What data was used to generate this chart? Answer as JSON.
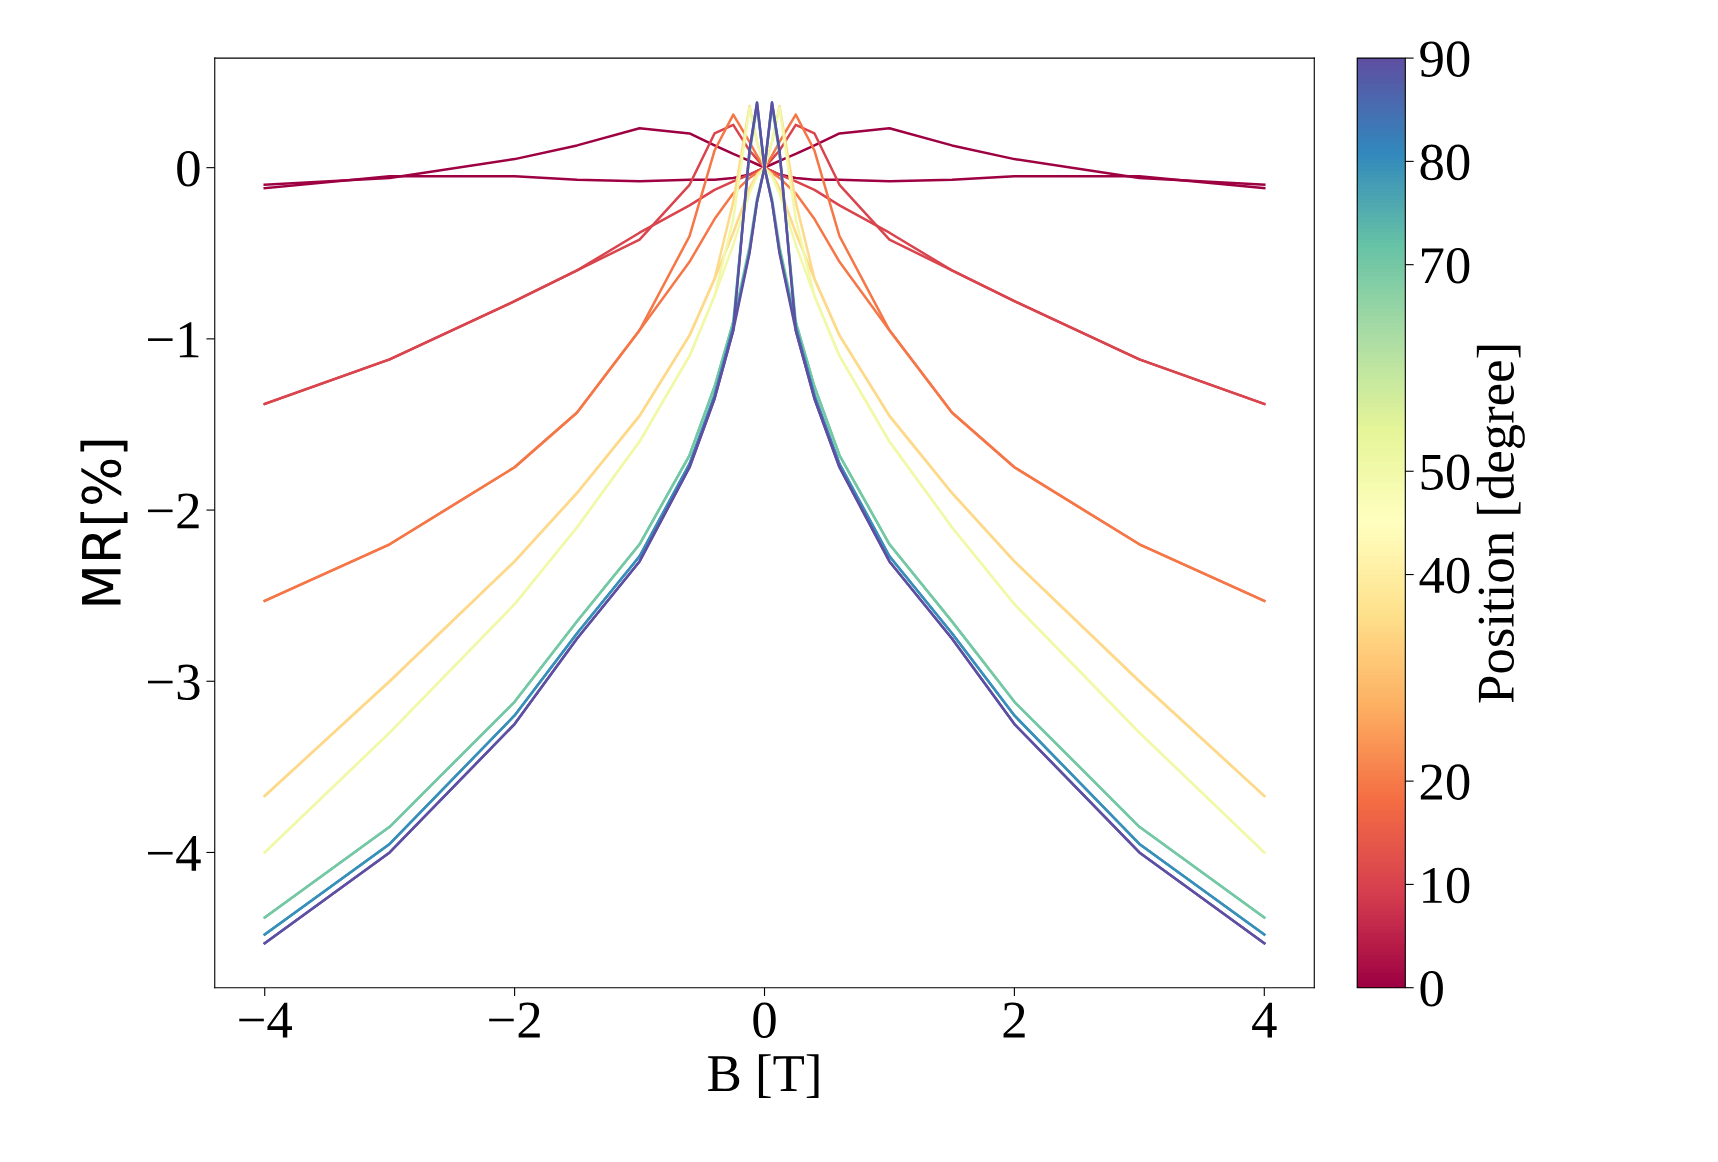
{
  "chart_data": {
    "type": "line",
    "xlabel": "B [T]",
    "ylabel": "MR[%]",
    "clabel": "Position [degree]",
    "x": [
      -4,
      -3,
      -2,
      -1.5,
      -1,
      -0.6,
      -0.4,
      -0.25,
      -0.12,
      -0.06,
      0,
      0.06,
      0.12,
      0.25,
      0.4,
      0.6,
      1,
      1.5,
      2,
      3,
      4
    ],
    "series": [
      {
        "color": "#9e0142",
        "values": [
          -0.1,
          -0.06,
          0.05,
          0.13,
          0.23,
          0.2,
          0.13,
          0.08,
          0.04,
          0.02,
          0,
          -0.02,
          -0.04,
          -0.06,
          -0.07,
          -0.07,
          -0.08,
          -0.07,
          -0.05,
          -0.05,
          -0.12
        ]
      },
      {
        "color": "#9e0142",
        "values": [
          -0.12,
          -0.05,
          -0.05,
          -0.07,
          -0.08,
          -0.07,
          -0.07,
          -0.06,
          -0.04,
          -0.02,
          0,
          0.02,
          0.04,
          0.08,
          0.13,
          0.2,
          0.23,
          0.13,
          0.05,
          -0.06,
          -0.1
        ]
      },
      {
        "color": "#d9444d",
        "values": [
          -1.38,
          -1.12,
          -0.78,
          -0.6,
          -0.42,
          -0.1,
          0.2,
          0.25,
          0.1,
          0.05,
          0,
          -0.02,
          -0.04,
          -0.08,
          -0.13,
          -0.22,
          -0.38,
          -0.6,
          -0.78,
          -1.12,
          -1.38
        ]
      },
      {
        "color": "#d9444d",
        "values": [
          -1.38,
          -1.12,
          -0.78,
          -0.6,
          -0.38,
          -0.22,
          -0.13,
          -0.08,
          -0.04,
          -0.02,
          0,
          0.05,
          0.1,
          0.25,
          0.2,
          -0.1,
          -0.42,
          -0.6,
          -0.78,
          -1.12,
          -1.38
        ]
      },
      {
        "color": "#f57748",
        "values": [
          -2.53,
          -2.2,
          -1.75,
          -1.43,
          -0.95,
          -0.4,
          0.1,
          0.31,
          0.15,
          0.07,
          0,
          -0.03,
          -0.06,
          -0.15,
          -0.3,
          -0.55,
          -0.95,
          -1.43,
          -1.75,
          -2.2,
          -2.53
        ]
      },
      {
        "color": "#f57748",
        "values": [
          -2.53,
          -2.2,
          -1.75,
          -1.43,
          -0.95,
          -0.55,
          -0.3,
          -0.15,
          -0.06,
          -0.03,
          0,
          0.07,
          0.15,
          0.31,
          0.1,
          -0.4,
          -0.95,
          -1.43,
          -1.75,
          -2.2,
          -2.53
        ]
      },
      {
        "color": "#fed98a",
        "values": [
          -3.67,
          -3.0,
          -2.3,
          -1.9,
          -1.45,
          -0.98,
          -0.65,
          -0.2,
          0.36,
          0.15,
          0,
          -0.04,
          -0.12,
          -0.38,
          -0.65,
          -0.98,
          -1.45,
          -1.9,
          -2.3,
          -3.0,
          -3.67
        ]
      },
      {
        "color": "#fed98a",
        "values": [
          -3.67,
          -3.0,
          -2.3,
          -1.9,
          -1.45,
          -0.98,
          -0.65,
          -0.38,
          -0.12,
          -0.04,
          0,
          0.15,
          0.36,
          -0.2,
          -0.65,
          -0.98,
          -1.45,
          -1.9,
          -2.3,
          -3.0,
          -3.67
        ]
      },
      {
        "color": "#f1f9a9",
        "values": [
          -4.0,
          -3.3,
          -2.55,
          -2.1,
          -1.6,
          -1.1,
          -0.75,
          -0.3,
          0.35,
          0.15,
          0,
          -0.05,
          -0.15,
          -0.45,
          -0.75,
          -1.1,
          -1.6,
          -2.1,
          -2.55,
          -3.3,
          -4.0
        ]
      },
      {
        "color": "#f1f9a9",
        "values": [
          -4.0,
          -3.3,
          -2.55,
          -2.1,
          -1.6,
          -1.1,
          -0.75,
          -0.45,
          -0.15,
          -0.05,
          0,
          0.15,
          0.35,
          -0.3,
          -0.75,
          -1.1,
          -1.6,
          -2.1,
          -2.55,
          -3.3,
          -4.0
        ]
      },
      {
        "color": "#75c8a5",
        "values": [
          -4.38,
          -3.85,
          -3.12,
          -2.65,
          -2.2,
          -1.68,
          -1.28,
          -0.9,
          0.08,
          0.36,
          0,
          -0.18,
          -0.46,
          -0.9,
          -1.28,
          -1.68,
          -2.2,
          -2.65,
          -3.12,
          -3.85,
          -4.38
        ]
      },
      {
        "color": "#75c8a5",
        "values": [
          -4.38,
          -3.85,
          -3.12,
          -2.65,
          -2.2,
          -1.68,
          -1.28,
          -0.9,
          -0.46,
          -0.18,
          0,
          0.36,
          0.08,
          -0.9,
          -1.28,
          -1.68,
          -2.2,
          -2.65,
          -3.12,
          -3.85,
          -4.38
        ]
      },
      {
        "color": "#3890ba",
        "values": [
          -4.48,
          -3.95,
          -3.2,
          -2.72,
          -2.27,
          -1.73,
          -1.33,
          -0.93,
          0.1,
          0.38,
          0,
          -0.2,
          -0.49,
          -0.93,
          -1.33,
          -1.73,
          -2.27,
          -2.72,
          -3.2,
          -3.95,
          -4.48
        ]
      },
      {
        "color": "#3890ba",
        "values": [
          -4.48,
          -3.95,
          -3.2,
          -2.72,
          -2.27,
          -1.73,
          -1.33,
          -0.93,
          -0.49,
          -0.2,
          0,
          0.38,
          0.1,
          -0.93,
          -1.33,
          -1.73,
          -2.27,
          -2.72,
          -3.2,
          -3.95,
          -4.48
        ]
      },
      {
        "color": "#5e4fa2",
        "values": [
          -4.53,
          -4.0,
          -3.25,
          -2.75,
          -2.3,
          -1.75,
          -1.35,
          -0.95,
          0.1,
          0.38,
          0,
          -0.2,
          -0.5,
          -0.95,
          -1.35,
          -1.75,
          -2.3,
          -2.75,
          -3.25,
          -4.0,
          -4.53
        ]
      },
      {
        "color": "#5e4fa2",
        "values": [
          -4.53,
          -4.0,
          -3.25,
          -2.75,
          -2.3,
          -1.75,
          -1.35,
          -0.95,
          -0.5,
          -0.2,
          0,
          0.38,
          0.1,
          -0.95,
          -1.35,
          -1.75,
          -2.3,
          -2.75,
          -3.25,
          -4.0,
          -4.53
        ]
      }
    ],
    "xlim": [
      -4.4,
      4.4
    ],
    "ylim": [
      -4.79,
      0.64
    ],
    "xticks": [
      {
        "value": -4,
        "label": "−4"
      },
      {
        "value": -2,
        "label": "−2"
      },
      0,
      2,
      4
    ],
    "yticks": [
      {
        "value": -4,
        "label": "−4"
      },
      {
        "value": -3,
        "label": "−3"
      },
      {
        "value": -2,
        "label": "−2"
      },
      {
        "value": -1,
        "label": "−1"
      },
      0
    ],
    "clim": [
      0,
      90
    ],
    "cticks": [
      0,
      10,
      20,
      40,
      50,
      70,
      80,
      90
    ],
    "line_style": "solid",
    "marker": "none",
    "grid": false,
    "legend": false
  }
}
